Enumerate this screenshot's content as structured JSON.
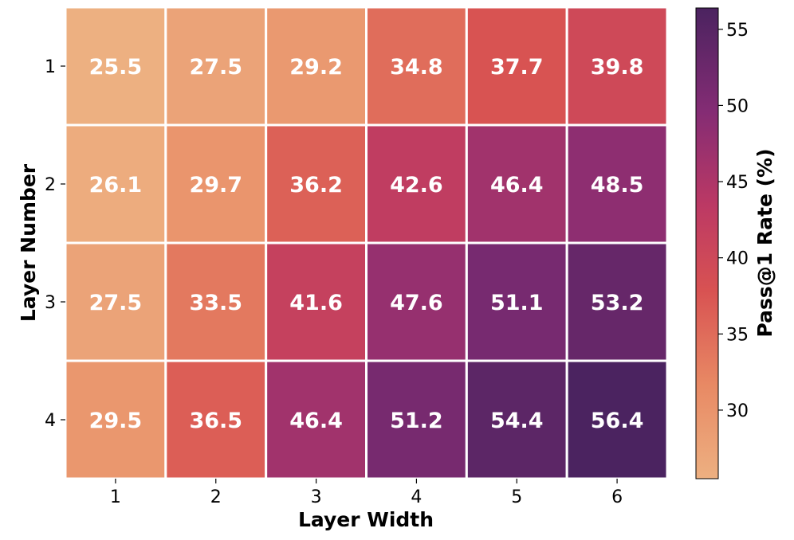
{
  "chart_data": {
    "type": "heatmap",
    "title": "",
    "xlabel": "Layer Width",
    "ylabel": "Layer Number",
    "x_categories": [
      "1",
      "2",
      "3",
      "4",
      "5",
      "6"
    ],
    "y_categories": [
      "1",
      "2",
      "3",
      "4"
    ],
    "values": [
      [
        25.5,
        27.5,
        29.2,
        34.8,
        37.7,
        39.8
      ],
      [
        26.1,
        29.7,
        36.2,
        42.6,
        46.4,
        48.5
      ],
      [
        27.5,
        33.5,
        41.6,
        47.6,
        51.1,
        53.2
      ],
      [
        29.5,
        36.5,
        46.4,
        51.2,
        54.4,
        56.4
      ]
    ],
    "cell_labels": [
      [
        "25.5",
        "27.5",
        "29.2",
        "34.8",
        "37.7",
        "39.8"
      ],
      [
        "26.1",
        "29.7",
        "36.2",
        "42.6",
        "46.4",
        "48.5"
      ],
      [
        "27.5",
        "33.5",
        "41.6",
        "47.6",
        "51.1",
        "53.2"
      ],
      [
        "29.5",
        "36.5",
        "46.4",
        "51.2",
        "54.4",
        "56.4"
      ]
    ],
    "colorbar": {
      "label": "Pass@1 Rate (%)",
      "range": [
        25.5,
        56.4
      ],
      "ticks": [
        30,
        35,
        40,
        45,
        50,
        55
      ],
      "tick_labels": [
        "30",
        "35",
        "40",
        "45",
        "50",
        "55"
      ],
      "colormap": "flare",
      "low_color": "#edb081",
      "high_color": "#4b2360"
    },
    "grid": false,
    "cell_border_color": "#ffffff"
  }
}
